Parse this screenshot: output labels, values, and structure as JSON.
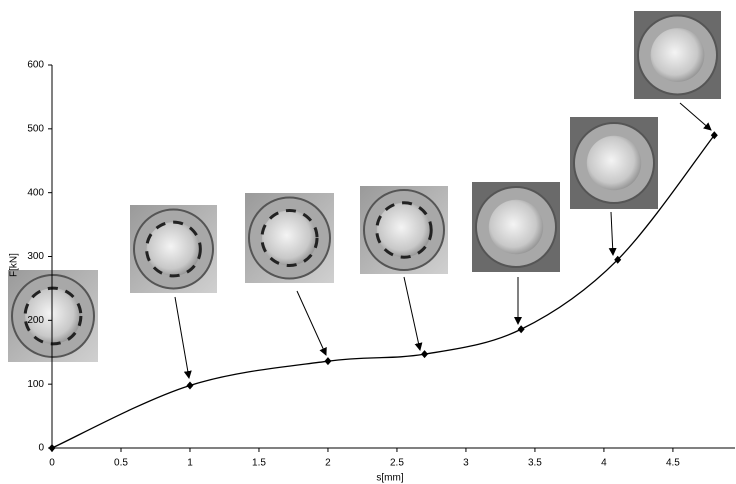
{
  "chart_data": {
    "type": "line",
    "x_label": "s[mm]",
    "y_label": "F[kN]",
    "x": [
      0,
      1,
      2,
      2.7,
      3.4,
      4.1,
      4.8
    ],
    "values": [
      0,
      98,
      136,
      147,
      186,
      295,
      490
    ],
    "color": "#000000",
    "xlim": [
      0,
      4.95
    ],
    "xticks": [
      0,
      0.5,
      1,
      1.5,
      2,
      2.5,
      3,
      3.5,
      4,
      4.5
    ],
    "ylim": [
      0,
      600
    ],
    "yticks": [
      0,
      100,
      200,
      300,
      400,
      500,
      600
    ]
  }
}
